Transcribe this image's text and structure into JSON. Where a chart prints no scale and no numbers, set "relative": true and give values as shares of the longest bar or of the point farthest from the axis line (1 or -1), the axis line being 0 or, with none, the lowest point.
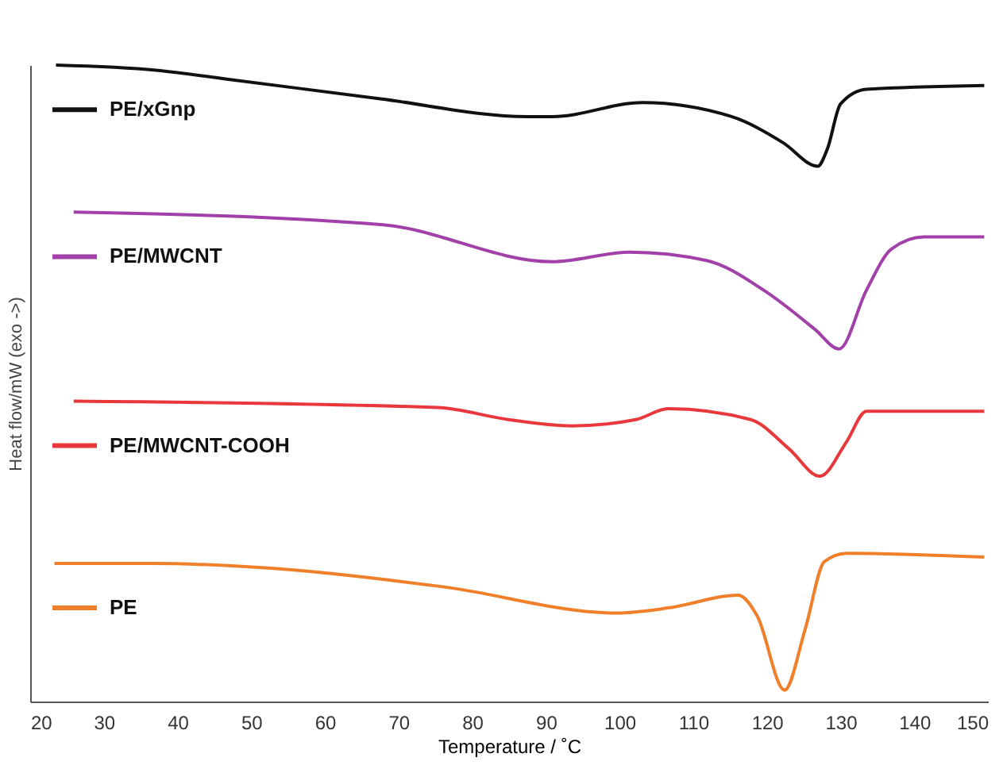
{
  "chart_data": {
    "type": "line",
    "relative": true,
    "xlabel": "Temperature / ˚C",
    "ylabel": "Heat flow/mW  (exo ->)",
    "xlim": [
      20,
      150
    ],
    "xticks": [
      20,
      30,
      40,
      50,
      60,
      70,
      80,
      90,
      100,
      110,
      120,
      130,
      140,
      150
    ],
    "grid": false,
    "legend": "left",
    "marker": "none",
    "line_style": "solid",
    "series": [
      {
        "name": "PE/xGnp",
        "color": "#111111",
        "x": [
          23.5,
          37.1,
          46.7,
          67.5,
          87.5,
          90.9,
          103.1,
          115.2,
          122.2,
          126.9,
          128.2,
          130.0,
          133.5,
          149.5
        ],
        "values": [
          1.0,
          0.992,
          0.978,
          0.947,
          0.919,
          0.919,
          0.941,
          0.919,
          0.878,
          0.841,
          0.868,
          0.939,
          0.962,
          0.968
        ]
      },
      {
        "name": "PE/MWCNT",
        "color": "#a040a8",
        "x": [
          25.9,
          67.9,
          90.9,
          101.3,
          111.8,
          119.6,
          126.5,
          129.8,
          133.5,
          136.9,
          141.3,
          149.5
        ],
        "values": [
          0.769,
          0.749,
          0.691,
          0.706,
          0.693,
          0.646,
          0.585,
          0.554,
          0.646,
          0.711,
          0.73,
          0.73
        ]
      },
      {
        "name": "PE/MWCNT-COOH",
        "color": "#e8383c",
        "x": [
          25.9,
          75.3,
          84.9,
          93.5,
          102.2,
          106.6,
          117.8,
          123.0,
          127.2,
          130.8,
          133.5,
          149.5
        ],
        "values": [
          0.472,
          0.462,
          0.443,
          0.433,
          0.443,
          0.46,
          0.443,
          0.397,
          0.354,
          0.408,
          0.456,
          0.456
        ]
      },
      {
        "name": "PE",
        "color": "#f07f2a",
        "x": [
          23.3,
          36.3,
          51.9,
          76.2,
          99.6,
          106.6,
          116.1,
          118.7,
          122.4,
          125.2,
          127.8,
          130.8,
          149.5
        ],
        "values": [
          0.217,
          0.217,
          0.21,
          0.18,
          0.139,
          0.147,
          0.167,
          0.134,
          0.018,
          0.114,
          0.22,
          0.233,
          0.227
        ]
      }
    ]
  }
}
